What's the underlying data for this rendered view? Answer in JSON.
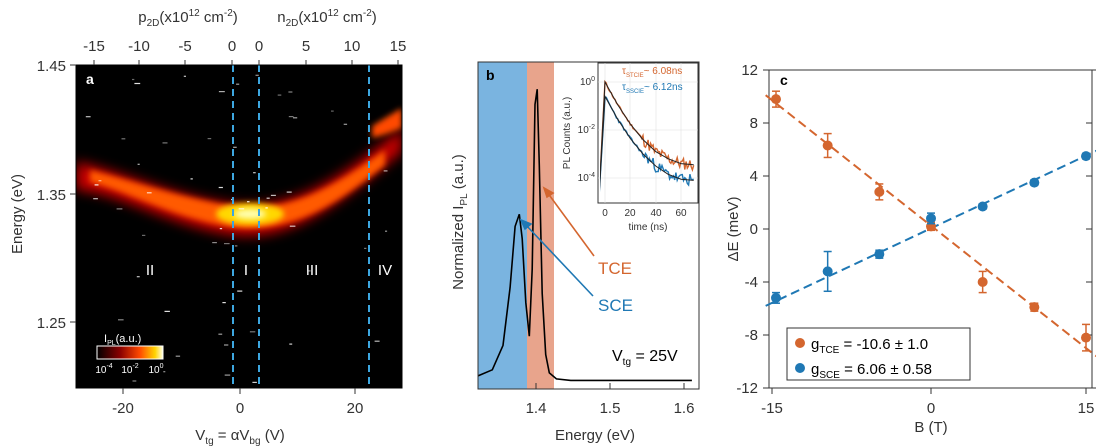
{
  "panel_a": {
    "letter": "a",
    "top_axis": {
      "left_label": "p",
      "left_sub": "2D",
      "left_rest": "(x10",
      "left_sup": "12",
      "left_unit": " cm",
      "left_unit_sup": "-2",
      "left_close": ")",
      "right_label": "n",
      "right_sub": "2D",
      "right_rest": "(x10",
      "right_sup": "12",
      "right_unit": " cm",
      "right_unit_sup": "-2",
      "right_close": ")",
      "ticks_left": [
        "-15",
        "-10",
        "-5",
        "0"
      ],
      "ticks_right": [
        "0",
        "5",
        "10",
        "15"
      ]
    },
    "ylabel": "Energy (eV)",
    "yticks": [
      "1.45",
      "1.35",
      "1.25"
    ],
    "xticks": [
      "-20",
      "0",
      "20"
    ],
    "xlabel_v": "V",
    "xlabel_sub": "tg",
    "xlabel_mid": " = αV",
    "xlabel_sub2": "bg",
    "xlabel_end": " (V)",
    "regions": [
      "II",
      "I",
      "III",
      "IV"
    ],
    "colorbar": {
      "label_i": "I",
      "label_sub": "PL",
      "label_rest": "(a.u.)",
      "ticks": [
        "10",
        "10",
        "10"
      ],
      "tick_sups": [
        "-4",
        "-2",
        "0"
      ]
    }
  },
  "panel_b": {
    "letter": "b",
    "ylabel_main": "Normalized I",
    "ylabel_sub": "PL",
    "ylabel_end": " (a.u.)",
    "xlabel": "Energy (eV)",
    "xticks": [
      "1.4",
      "1.5",
      "1.6"
    ],
    "annot_tce": "TCE",
    "annot_sce": "SCE",
    "vtg_main": "V",
    "vtg_sub": "tg",
    "vtg_rest": " = 25V",
    "colors": {
      "sce_band": "#7ab4e0",
      "tce_band": "#e8a48c",
      "tce": "#d4662f",
      "sce": "#1f78b4"
    },
    "inset": {
      "ylabel": "PL Counts (a.u.)",
      "xlabel": "time (ns)",
      "xticks": [
        "0",
        "20",
        "40",
        "60"
      ],
      "yticks": [
        "10",
        "10",
        "10"
      ],
      "ytick_sups": [
        "0",
        "-2",
        "-4"
      ],
      "tau1_main": "τ",
      "tau1_sub": "STCIE",
      "tau1_val": "~ 6.08ns",
      "tau2_main": "τ",
      "tau2_sub": "SSCIE",
      "tau2_val": "~ 6.12ns"
    }
  },
  "panel_c": {
    "letter": "c",
    "ylabel": "ΔE (meV)",
    "xlabel": "B (T)",
    "yticks": [
      "12",
      "8",
      "4",
      "0",
      "-4",
      "-8",
      "-12"
    ],
    "xticks": [
      "-15",
      "0",
      "15"
    ],
    "legend": [
      {
        "g": "g",
        "sub": "TCE",
        "value": " = -10.6 ± 1.0",
        "color": "#d4662f"
      },
      {
        "g": "g",
        "sub": "SCE",
        "value": " = 6.06 ± 0.58",
        "color": "#1f78b4"
      }
    ]
  },
  "chart_data": [
    {
      "type": "heatmap",
      "title": "",
      "xlabel": "Vtg = αVbg (V)",
      "ylabel": "Energy (eV)",
      "xlim": [
        -28,
        28
      ],
      "ylim": [
        1.2,
        1.45
      ],
      "secondary_x_label_left": "p2D(x10^12 cm^-2)",
      "secondary_x_label_right": "n2D(x10^12 cm^-2)",
      "regions": [
        "II",
        "I",
        "III",
        "IV"
      ],
      "region_boundaries_v": [
        -1.5,
        3,
        22.5
      ],
      "colorbar": {
        "label": "IPL (a.u.)",
        "scale": "log",
        "range": [
          0.0001,
          1
        ]
      }
    },
    {
      "type": "line",
      "title": "",
      "xlabel": "Energy (eV)",
      "ylabel": "Normalized IPL (a.u.)",
      "xlim": [
        1.32,
        1.63
      ],
      "series": [
        {
          "x": [
            1.32,
            1.34,
            1.355,
            1.365,
            1.372,
            1.378,
            1.382,
            1.387,
            1.392,
            1.396,
            1.4,
            1.403,
            1.406,
            1.41,
            1.415,
            1.42,
            1.43,
            1.45,
            1.5,
            1.55,
            1.62
          ],
          "values": [
            0.03,
            0.05,
            0.13,
            0.32,
            0.52,
            0.56,
            0.48,
            0.27,
            0.16,
            0.38,
            0.92,
            0.97,
            0.72,
            0.3,
            0.1,
            0.04,
            0.02,
            0.015,
            0.015,
            0.015,
            0.015
          ]
        }
      ],
      "shaded_bands": [
        {
          "label": "SCE",
          "xrange": [
            1.32,
            1.39
          ]
        },
        {
          "label": "TCE",
          "xrange": [
            1.39,
            1.425
          ]
        }
      ],
      "annotations": [
        "TCE",
        "SCE",
        "Vtg = 25V"
      ],
      "inset": {
        "type": "line",
        "xlabel": "time (ns)",
        "ylabel": "PL Counts (a.u.)",
        "xlim": [
          -5,
          70
        ],
        "ylim_log10": [
          -5,
          0.3
        ],
        "yscale": "log",
        "series": [
          {
            "name": "τSTCIE ~ 6.08ns",
            "x": [
              0,
              10,
              20,
              30,
              40,
              50,
              60,
              70
            ],
            "log10_values": [
              0.0,
              -0.95,
              -1.75,
              -2.4,
              -2.9,
              -3.2,
              -3.4,
              -3.45
            ]
          },
          {
            "name": "τSSCIE ~ 6.12ns",
            "x": [
              0,
              10,
              20,
              30,
              40,
              50,
              60,
              70
            ],
            "log10_values": [
              -0.6,
              -1.55,
              -2.35,
              -3.0,
              -3.5,
              -3.85,
              -4.05,
              -4.1
            ]
          }
        ]
      }
    },
    {
      "type": "scatter",
      "title": "",
      "xlabel": "B (T)",
      "ylabel": "ΔE (meV)",
      "xlim": [
        -16,
        16
      ],
      "ylim": [
        -12,
        12
      ],
      "series": [
        {
          "name": "gTCE = -10.6 ± 1.0",
          "x": [
            -15,
            -10,
            -5,
            0,
            5,
            10,
            15
          ],
          "values": [
            9.8,
            6.3,
            2.8,
            0.2,
            -4.0,
            -5.9,
            -8.2
          ],
          "errors": [
            0.6,
            0.9,
            0.6,
            0.3,
            0.8,
            0.3,
            1.0
          ]
        },
        {
          "name": "gSCE = 6.06 ± 0.58",
          "x": [
            -15,
            -10,
            -5,
            0,
            5,
            10,
            15
          ],
          "values": [
            -5.2,
            -3.2,
            -1.9,
            0.8,
            1.7,
            3.5,
            5.5
          ],
          "errors": [
            0.4,
            1.5,
            0.3,
            0.4,
            0.2,
            0.2,
            0.2
          ]
        }
      ],
      "fit_lines": [
        {
          "series": "TCE",
          "x": [
            -16,
            16
          ],
          "values": [
            10.1,
            -9.6
          ]
        },
        {
          "series": "SCE",
          "x": [
            -16,
            16
          ],
          "values": [
            -5.8,
            5.9
          ]
        }
      ]
    }
  ]
}
